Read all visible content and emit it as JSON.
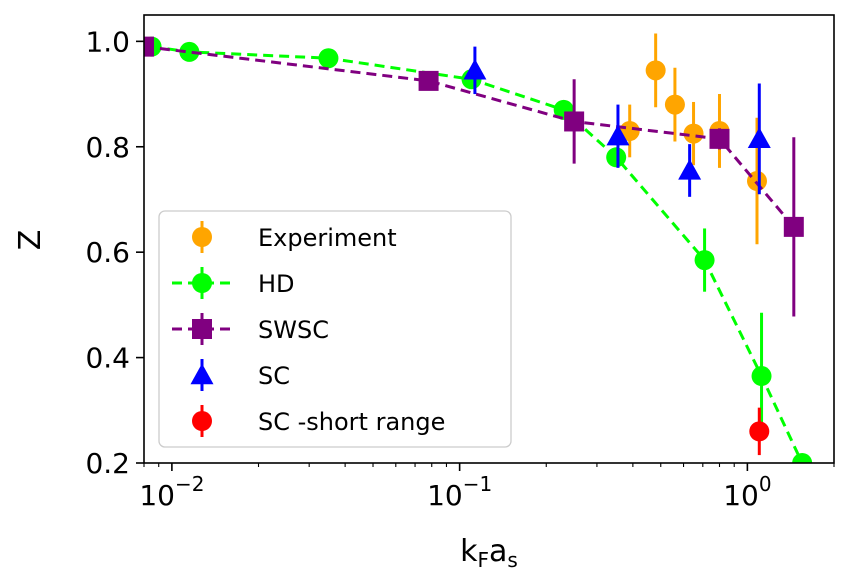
{
  "chart_data": {
    "type": "scatter",
    "x_scale": "log",
    "xlim": [
      0.008,
      2.0
    ],
    "ylim": [
      0.2,
      1.05
    ],
    "xlabel": {
      "main": "k",
      "sub1": "F",
      "mid": "a",
      "sub2": "s"
    },
    "ylabel": "Z",
    "x_ticks": [
      {
        "value": 0.01,
        "base": "10",
        "exp": "−2"
      },
      {
        "value": 0.1,
        "base": "10",
        "exp": "−1"
      },
      {
        "value": 1,
        "base": "10",
        "exp": "0"
      }
    ],
    "y_ticks": [
      "0.2",
      "0.4",
      "0.6",
      "0.8",
      "1.0"
    ],
    "grid": false,
    "legend_position": "lower-left",
    "series": [
      {
        "name": "Experiment",
        "color": "#FFA500",
        "marker": "circle",
        "line": "none",
        "points": [
          {
            "x": 0.39,
            "y": 0.83,
            "err": 0.05
          },
          {
            "x": 0.48,
            "y": 0.945,
            "err": 0.07
          },
          {
            "x": 0.56,
            "y": 0.88,
            "err": 0.07
          },
          {
            "x": 0.65,
            "y": 0.825,
            "err": 0.06
          },
          {
            "x": 0.8,
            "y": 0.83,
            "err": 0.07
          },
          {
            "x": 1.08,
            "y": 0.735,
            "err": 0.12
          }
        ]
      },
      {
        "name": "HD",
        "color": "#00FF00",
        "marker": "circle",
        "line": "dashed",
        "points": [
          {
            "x": 0.0085,
            "y": 0.99,
            "err": 0
          },
          {
            "x": 0.0115,
            "y": 0.98,
            "err": 0
          },
          {
            "x": 0.035,
            "y": 0.968,
            "err": 0
          },
          {
            "x": 0.11,
            "y": 0.928,
            "err": 0
          },
          {
            "x": 0.23,
            "y": 0.87,
            "err": 0
          },
          {
            "x": 0.35,
            "y": 0.78,
            "err": 0
          },
          {
            "x": 0.71,
            "y": 0.585,
            "err": 0.06
          },
          {
            "x": 1.12,
            "y": 0.365,
            "err": 0.12
          },
          {
            "x": 1.55,
            "y": 0.2,
            "err": 0
          }
        ]
      },
      {
        "name": "SWSC",
        "color": "#800080",
        "marker": "square",
        "line": "dashed",
        "points": [
          {
            "x": 0.008,
            "y": 0.99,
            "err": 0
          },
          {
            "x": 0.078,
            "y": 0.925,
            "err": 0.015
          },
          {
            "x": 0.25,
            "y": 0.848,
            "err": 0.08
          },
          {
            "x": 0.8,
            "y": 0.815,
            "err": 0.02
          },
          {
            "x": 1.45,
            "y": 0.648,
            "err": 0.17
          }
        ]
      },
      {
        "name": "SC",
        "color": "#0000FF",
        "marker": "triangle",
        "line": "none",
        "points": [
          {
            "x": 0.113,
            "y": 0.945,
            "err": 0.045
          },
          {
            "x": 0.355,
            "y": 0.82,
            "err": 0.06
          },
          {
            "x": 0.63,
            "y": 0.755,
            "err": 0.05
          },
          {
            "x": 1.1,
            "y": 0.815,
            "err": 0.105
          }
        ]
      },
      {
        "name": "SC -short range",
        "color": "#FF0000",
        "marker": "circle",
        "line": "none",
        "points": [
          {
            "x": 1.1,
            "y": 0.26,
            "err": 0.045
          }
        ]
      }
    ]
  }
}
